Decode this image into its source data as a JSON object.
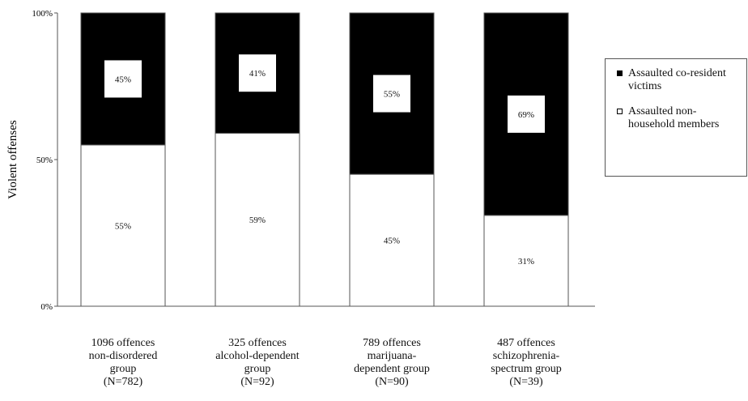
{
  "chart_data": {
    "type": "bar",
    "stacked": true,
    "ylabel": "Violent offenses",
    "ylim": [
      0,
      100
    ],
    "yticks": [
      "0%",
      "50%",
      "100%"
    ],
    "categories": [
      [
        "1096 offences",
        "non-disordered",
        "group",
        "(N=782)"
      ],
      [
        "325 offences",
        "alcohol-dependent",
        "group",
        "(N=92)"
      ],
      [
        "789 offences",
        "marijuana-",
        "dependent group",
        "(N=90)"
      ],
      [
        "487 offences",
        "schizophrenia-",
        "spectrum group",
        "(N=39)"
      ]
    ],
    "series": [
      {
        "name": "Assaulted non-household members",
        "color": "#ffffff",
        "values": [
          55,
          59,
          45,
          31
        ],
        "labels": [
          "55%",
          "59%",
          "45%",
          "31%"
        ]
      },
      {
        "name": "Assaulted co-resident victims",
        "color": "#000000",
        "values": [
          45,
          41,
          55,
          69
        ],
        "labels": [
          "45%",
          "41%",
          "55%",
          "69%"
        ]
      }
    ],
    "legend": {
      "placement": "right",
      "entries": [
        {
          "name": "Assaulted co-resident victims",
          "lines": [
            "Assaulted co-resident",
            "victims"
          ],
          "color": "#000000"
        },
        {
          "name": "Assaulted non-household members",
          "lines": [
            "Assaulted non-",
            "household members"
          ],
          "color": "#ffffff"
        }
      ]
    },
    "grid": false
  }
}
